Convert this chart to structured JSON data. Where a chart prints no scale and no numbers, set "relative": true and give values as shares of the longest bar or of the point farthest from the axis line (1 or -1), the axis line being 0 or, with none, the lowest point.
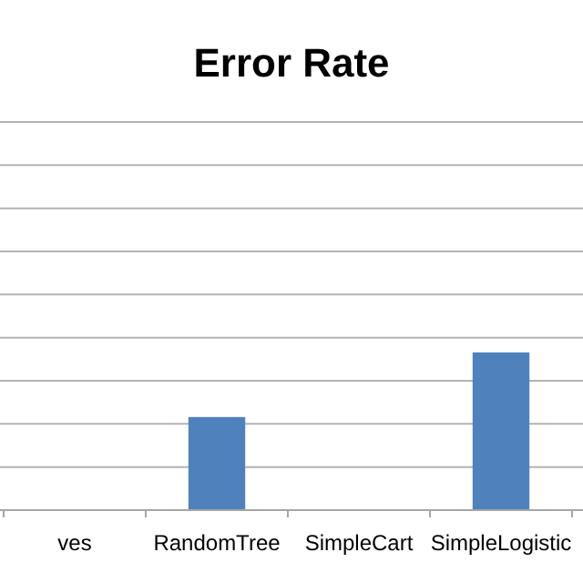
{
  "chart_data": {
    "type": "bar",
    "title": "Error Rate",
    "relative": true,
    "grid": "y",
    "categories": [
      "ves",
      "RandomTree",
      "SimpleCart",
      "SimpleLogistic"
    ],
    "values": [
      0,
      0.59,
      0,
      1
    ],
    "color": "#4f81bd"
  }
}
